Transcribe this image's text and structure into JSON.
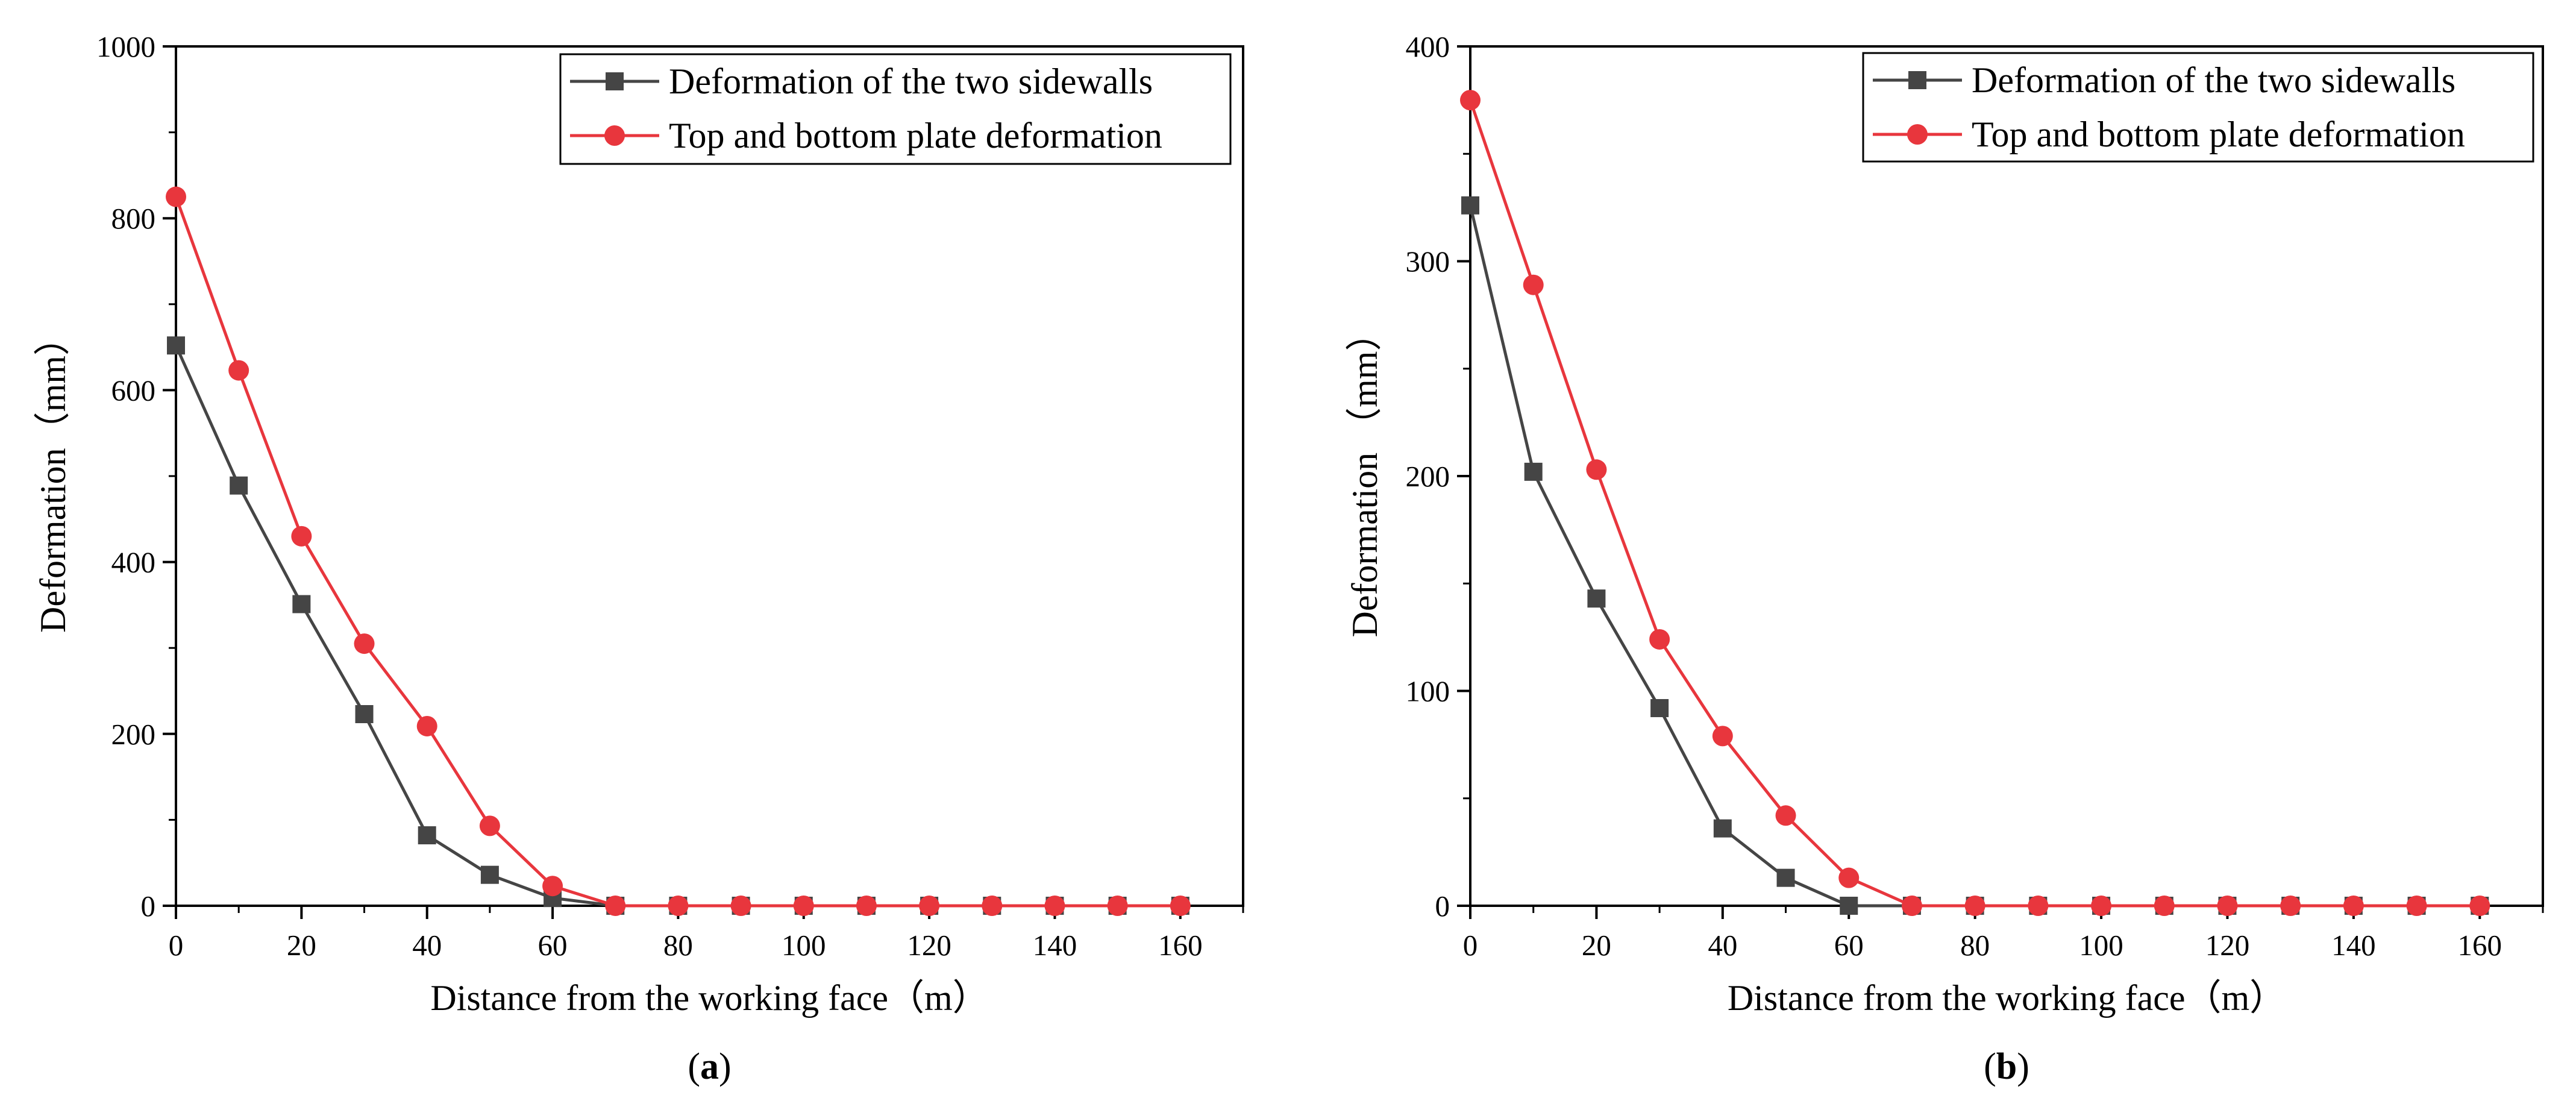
{
  "chart_data": [
    {
      "type": "line",
      "panel": "a",
      "panel_label": "a",
      "xlabel": "Distance from the working face（m）",
      "ylabel": "Deformation（mm）",
      "xlim": [
        0,
        170
      ],
      "ylim": [
        0,
        1000
      ],
      "x_ticks": [
        0,
        20,
        40,
        60,
        80,
        100,
        120,
        140,
        160
      ],
      "y_ticks": [
        0,
        200,
        400,
        600,
        800,
        1000
      ],
      "x_minor_ticks": [
        10,
        30,
        50,
        70,
        90,
        110,
        130,
        150,
        170
      ],
      "y_minor_ticks": [
        100,
        300,
        500,
        700,
        900
      ],
      "legend_position": "top-right",
      "x": [
        0,
        10,
        20,
        30,
        40,
        50,
        60,
        70,
        80,
        90,
        100,
        110,
        120,
        130,
        140,
        150,
        160
      ],
      "series": [
        {
          "name": "Deformation of the two sidewalls",
          "color": "#454545",
          "marker": "square",
          "values": [
            652,
            489,
            351,
            223,
            82,
            36,
            9,
            0,
            0,
            0,
            0,
            0,
            0,
            0,
            0,
            0,
            0
          ]
        },
        {
          "name": "Top and bottom plate deformation",
          "color": "#e8363d",
          "marker": "circle",
          "values": [
            825,
            623,
            430,
            305,
            209,
            93,
            23,
            0,
            0,
            0,
            0,
            0,
            0,
            0,
            0,
            0,
            0
          ]
        }
      ]
    },
    {
      "type": "line",
      "panel": "b",
      "panel_label": "b",
      "xlabel": "Distance from the working face（m）",
      "ylabel": "Deformation （mm）",
      "xlim": [
        0,
        170
      ],
      "ylim": [
        0,
        400
      ],
      "x_ticks": [
        0,
        20,
        40,
        60,
        80,
        100,
        120,
        140,
        160
      ],
      "y_ticks": [
        0,
        100,
        200,
        300,
        400
      ],
      "x_minor_ticks": [
        10,
        30,
        50,
        70,
        90,
        110,
        130,
        150,
        170
      ],
      "y_minor_ticks": [
        50,
        150,
        250,
        350
      ],
      "legend_position": "top-right",
      "x": [
        0,
        10,
        20,
        30,
        40,
        50,
        60,
        70,
        80,
        90,
        100,
        110,
        120,
        130,
        140,
        150,
        160
      ],
      "series": [
        {
          "name": "Deformation of the two sidewalls",
          "color": "#454545",
          "marker": "square",
          "values": [
            326,
            202,
            143,
            92,
            36,
            13,
            0,
            0,
            0,
            0,
            0,
            0,
            0,
            0,
            0,
            0,
            0
          ]
        },
        {
          "name": "Top and bottom plate deformation",
          "color": "#e8363d",
          "marker": "circle",
          "values": [
            375,
            289,
            203,
            124,
            79,
            42,
            13,
            0,
            0,
            0,
            0,
            0,
            0,
            0,
            0,
            0,
            0
          ]
        }
      ]
    }
  ]
}
